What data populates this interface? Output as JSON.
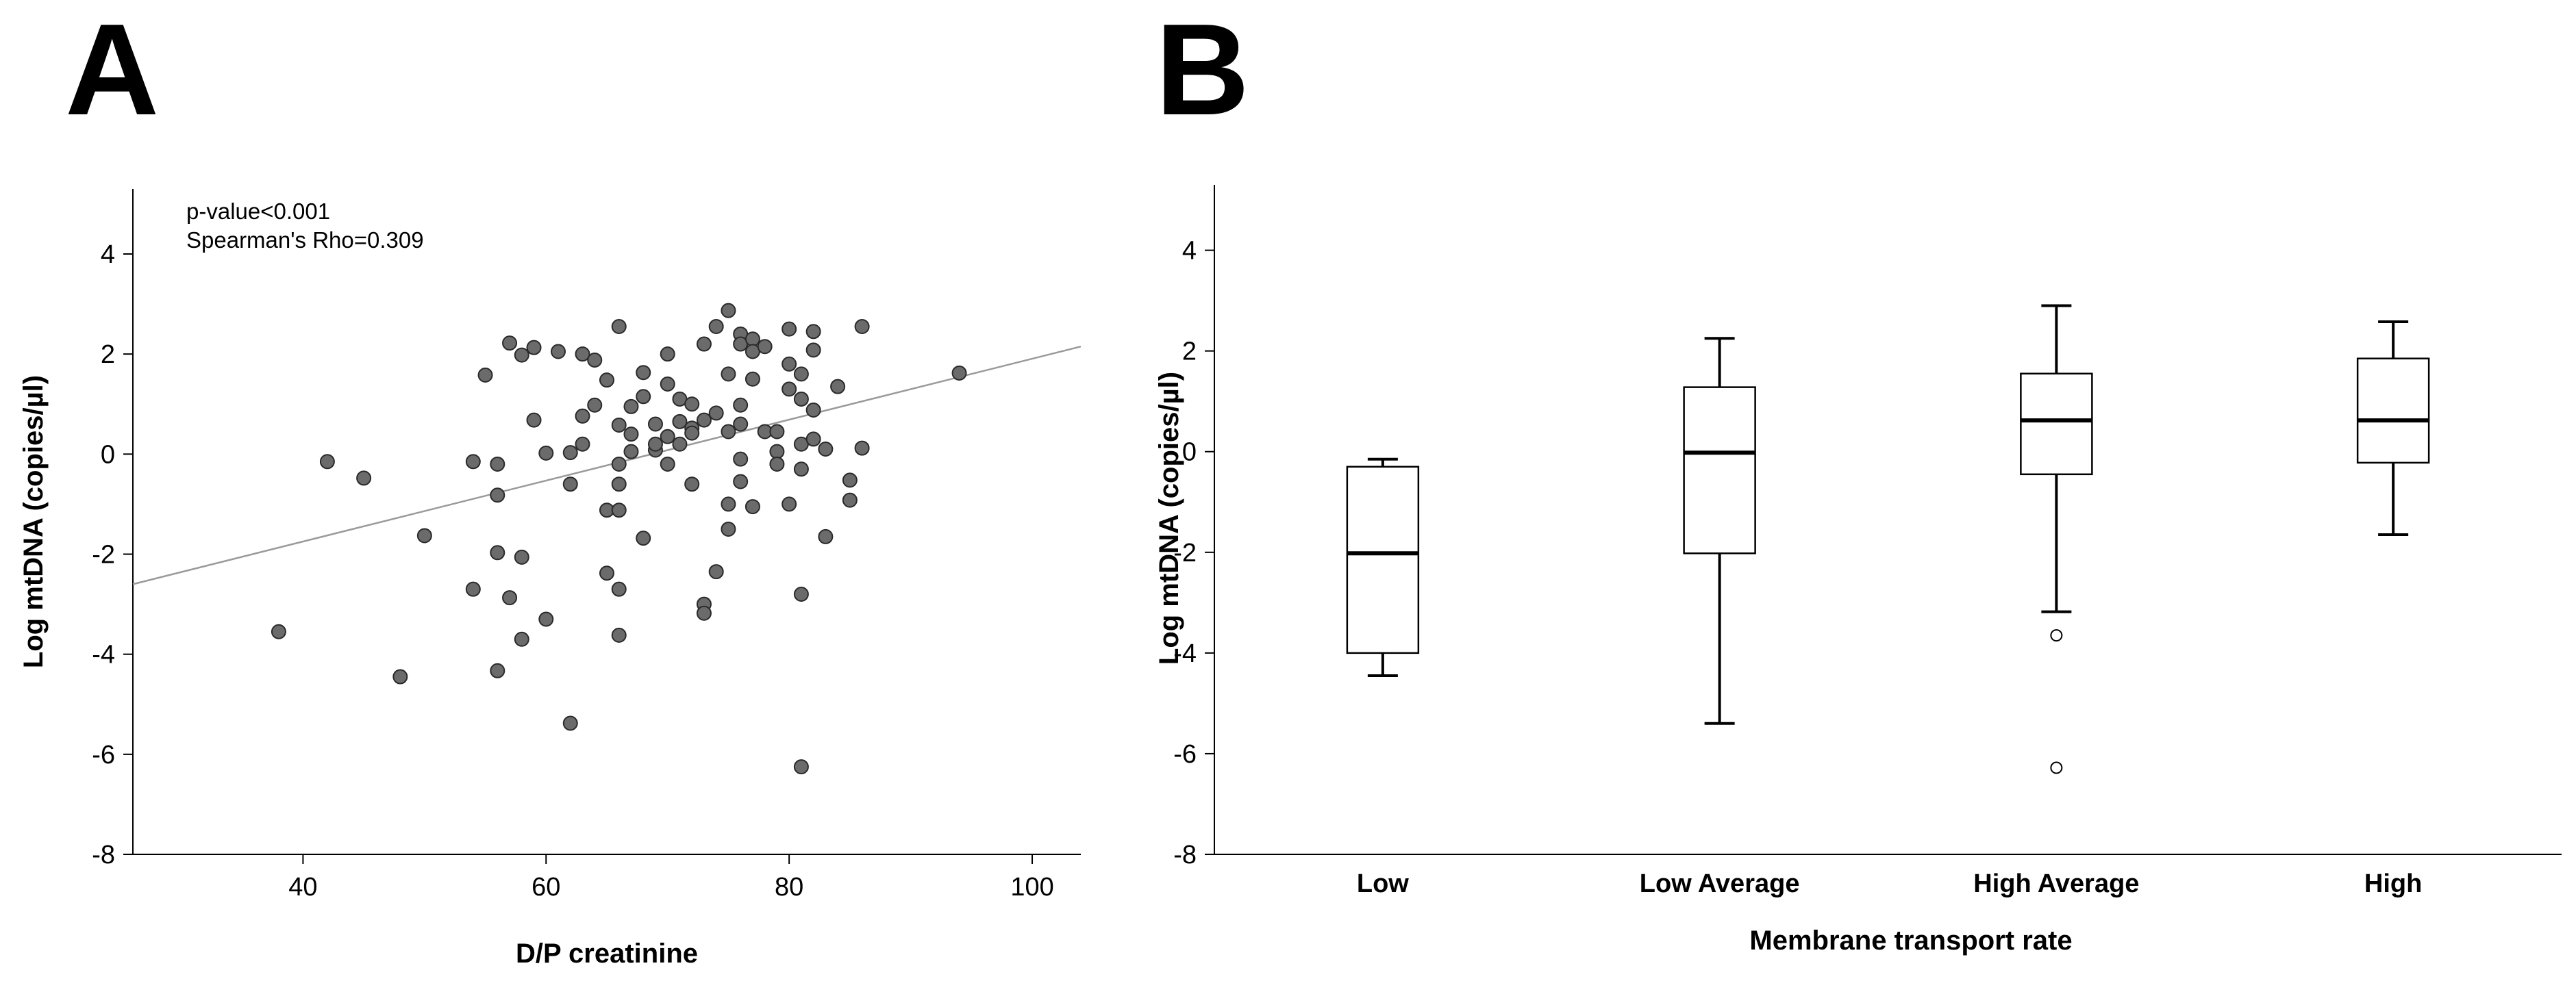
{
  "chart_data": [
    {
      "panel": "A",
      "type": "scatter",
      "xlabel": "D/P creatinine",
      "ylabel": "Log mtDNA (copies/µl)",
      "xlim": [
        26,
        104
      ],
      "ylim": [
        -8,
        5.3
      ],
      "xticks": [
        40,
        60,
        80,
        100
      ],
      "yticks": [
        -8,
        -6,
        -4,
        -2,
        0,
        2,
        4
      ],
      "annotations": [
        "p-value<0.001",
        "Spearman's Rho=0.309"
      ],
      "fit_line": {
        "x": [
          26,
          104
        ],
        "y": [
          -2.6,
          2.15
        ]
      },
      "points": [
        [
          38,
          -3.55
        ],
        [
          42,
          -0.15
        ],
        [
          45,
          -0.48
        ],
        [
          48,
          -4.45
        ],
        [
          50,
          -1.63
        ],
        [
          54,
          -0.15
        ],
        [
          54,
          -2.7
        ],
        [
          55,
          1.58
        ],
        [
          56,
          -0.82
        ],
        [
          56,
          -0.2
        ],
        [
          56,
          -1.97
        ],
        [
          56,
          -4.33
        ],
        [
          57,
          2.22
        ],
        [
          57,
          -2.87
        ],
        [
          58,
          1.98
        ],
        [
          58,
          -2.06
        ],
        [
          58,
          -3.7
        ],
        [
          59,
          2.13
        ],
        [
          59,
          0.68
        ],
        [
          60,
          0.02
        ],
        [
          60,
          -3.3
        ],
        [
          61,
          2.05
        ],
        [
          62,
          0.03
        ],
        [
          62,
          -0.6
        ],
        [
          62,
          -5.38
        ],
        [
          63,
          2.0
        ],
        [
          63,
          0.76
        ],
        [
          63,
          0.2
        ],
        [
          64,
          1.88
        ],
        [
          64,
          0.98
        ],
        [
          65,
          1.48
        ],
        [
          65,
          -2.38
        ],
        [
          65,
          -1.12
        ],
        [
          66,
          2.55
        ],
        [
          66,
          0.58
        ],
        [
          66,
          -0.2
        ],
        [
          66,
          -0.6
        ],
        [
          66,
          -1.12
        ],
        [
          66,
          -2.7
        ],
        [
          66,
          -3.62
        ],
        [
          67,
          0.95
        ],
        [
          67,
          0.4
        ],
        [
          67,
          0.05
        ],
        [
          68,
          1.63
        ],
        [
          68,
          1.15
        ],
        [
          68,
          -1.68
        ],
        [
          69,
          0.6
        ],
        [
          69,
          0.08
        ],
        [
          69,
          0.2
        ],
        [
          70,
          2.0
        ],
        [
          70,
          1.4
        ],
        [
          70,
          -0.2
        ],
        [
          70,
          0.35
        ],
        [
          71,
          1.1
        ],
        [
          71,
          0.65
        ],
        [
          71,
          0.2
        ],
        [
          72,
          1.0
        ],
        [
          72,
          0.52
        ],
        [
          72,
          -0.6
        ],
        [
          72,
          0.42
        ],
        [
          73,
          0.68
        ],
        [
          73,
          2.2
        ],
        [
          73,
          -3.0
        ],
        [
          73,
          -3.18
        ],
        [
          74,
          2.55
        ],
        [
          74,
          0.82
        ],
        [
          74,
          -2.35
        ],
        [
          75,
          2.87
        ],
        [
          75,
          1.6
        ],
        [
          75,
          0.45
        ],
        [
          75,
          -1.0
        ],
        [
          75,
          -1.5
        ],
        [
          76,
          2.4
        ],
        [
          76,
          2.2
        ],
        [
          76,
          0.98
        ],
        [
          76,
          0.6
        ],
        [
          76,
          -0.1
        ],
        [
          76,
          -0.55
        ],
        [
          77,
          2.3
        ],
        [
          77,
          2.05
        ],
        [
          77,
          1.5
        ],
        [
          77,
          -1.05
        ],
        [
          78,
          2.15
        ],
        [
          78,
          0.45
        ],
        [
          79,
          0.45
        ],
        [
          79,
          0.05
        ],
        [
          79,
          -0.2
        ],
        [
          80,
          2.5
        ],
        [
          80,
          1.8
        ],
        [
          80,
          1.3
        ],
        [
          80,
          -1.0
        ],
        [
          81,
          1.6
        ],
        [
          81,
          1.1
        ],
        [
          81,
          0.2
        ],
        [
          81,
          -0.3
        ],
        [
          81,
          -2.8
        ],
        [
          81,
          -6.25
        ],
        [
          82,
          2.45
        ],
        [
          82,
          2.08
        ],
        [
          82,
          0.88
        ],
        [
          82,
          0.3
        ],
        [
          83,
          0.1
        ],
        [
          83,
          -1.65
        ],
        [
          84,
          1.35
        ],
        [
          85,
          -0.52
        ],
        [
          85,
          -0.92
        ],
        [
          86,
          2.55
        ],
        [
          86,
          0.12
        ],
        [
          94,
          1.62
        ]
      ]
    },
    {
      "panel": "B",
      "type": "box",
      "xlabel": "Membrane transport rate",
      "ylabel": "Log mtDNA (copies/µl)",
      "ylim": [
        -8,
        5.3
      ],
      "yticks": [
        -8,
        -6,
        -4,
        -2,
        0,
        2,
        4
      ],
      "categories": [
        "Low",
        "Low Average",
        "High Average",
        "High"
      ],
      "boxes": [
        {
          "whisker_low": -4.45,
          "q1": -4.0,
          "median": -2.02,
          "q3": -0.3,
          "whisker_high": -0.15,
          "outliers": []
        },
        {
          "whisker_low": -5.4,
          "q1": -2.02,
          "median": -0.02,
          "q3": 1.28,
          "whisker_high": 2.25,
          "outliers": []
        },
        {
          "whisker_low": -3.18,
          "q1": -0.45,
          "median": 0.62,
          "q3": 1.55,
          "whisker_high": 2.9,
          "outliers": [
            -3.65,
            -6.28
          ]
        },
        {
          "whisker_low": -1.65,
          "q1": -0.22,
          "median": 0.62,
          "q3": 1.85,
          "whisker_high": 2.58,
          "outliers": []
        }
      ]
    }
  ]
}
